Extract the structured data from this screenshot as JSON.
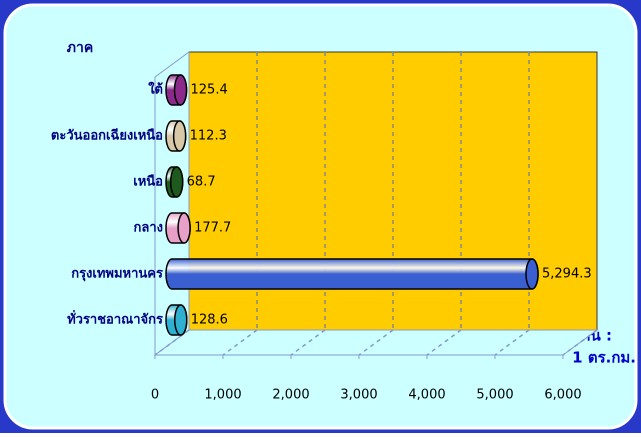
{
  "chart_data": {
    "type": "bar",
    "orientation": "horizontal",
    "y_label": "ภาค",
    "x_label": [
      "คน :",
      "1 ตร.กม."
    ],
    "categories": [
      "ใต้",
      "ตะวันออกเฉียงเหนือ",
      "เหนือ",
      "กลาง",
      "กรุงเทพมหานคร",
      "ทั่วราชอาณาจักร"
    ],
    "values": [
      125.4,
      112.3,
      68.7,
      177.7,
      5294.3,
      128.6
    ],
    "value_labels": [
      "125.4",
      "112.3",
      "68.7",
      "177.7",
      "5,294.3",
      "128.6"
    ],
    "colors": [
      "#8b2a8b",
      "#d8c8a8",
      "#1e5a1e",
      "#e8a0c8",
      "#3a5fd0",
      "#30b0d0"
    ],
    "xlim": [
      0,
      6000
    ],
    "xticks": [
      0,
      {
        "value": 1000,
        "label": "1,000"
      },
      {
        "value": 2000,
        "label": "2,000"
      },
      {
        "value": 3000,
        "label": "3,000"
      },
      {
        "value": 4000,
        "label": "4,000"
      },
      {
        "value": 5000,
        "label": "5,000"
      },
      {
        "value": 6000,
        "label": "6,000"
      }
    ],
    "grid": true
  }
}
